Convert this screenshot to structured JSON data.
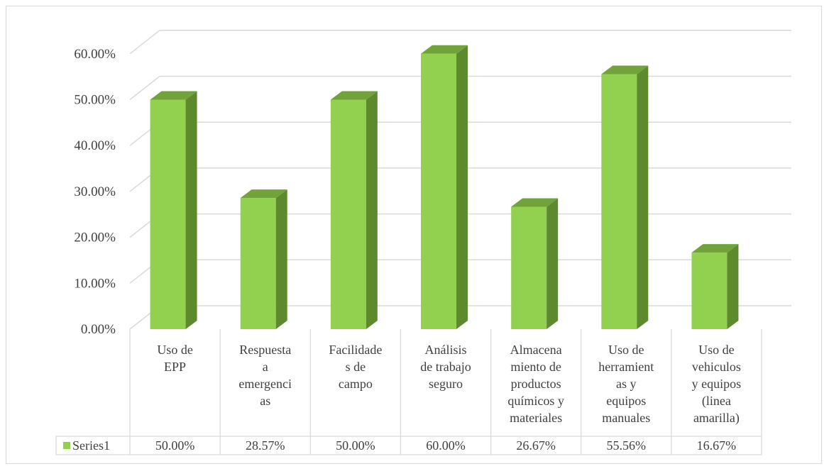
{
  "chart_data": {
    "type": "bar",
    "style": "3d-column with data table",
    "categories": [
      [
        "Uso de",
        "EPP"
      ],
      [
        "Respuesta",
        "a",
        "emergenci",
        "as"
      ],
      [
        "Facilidade",
        "s de",
        "campo"
      ],
      [
        "Análisis",
        "de trabajo",
        "seguro"
      ],
      [
        "Almacena",
        "miento de",
        "productos",
        "químicos y",
        "materiales"
      ],
      [
        "Uso de",
        "herramient",
        "as y",
        "equipos",
        "manuales"
      ],
      [
        "Uso de",
        "vehiculos",
        "y equipos",
        "(linea",
        "amarilla)"
      ]
    ],
    "series": [
      {
        "name": "Series1",
        "values": [
          0.5,
          0.2857,
          0.5,
          0.6,
          0.2667,
          0.5556,
          0.1667
        ],
        "labels": [
          "50.00%",
          "28.57%",
          "50.00%",
          "60.00%",
          "26.67%",
          "55.56%",
          "16.67%"
        ]
      }
    ],
    "y_tick_labels": [
      "0.00%",
      "10.00%",
      "20.00%",
      "30.00%",
      "40.00%",
      "50.00%",
      "60.00%"
    ],
    "ylim": [
      0,
      0.6
    ],
    "ystep": 0.1,
    "grid": true,
    "legend": "data table",
    "colors": {
      "front": "#92d050",
      "side": "#5e8a2e",
      "top": "#72a33a",
      "grid": "#d9d9d9",
      "text": "#404040"
    }
  }
}
